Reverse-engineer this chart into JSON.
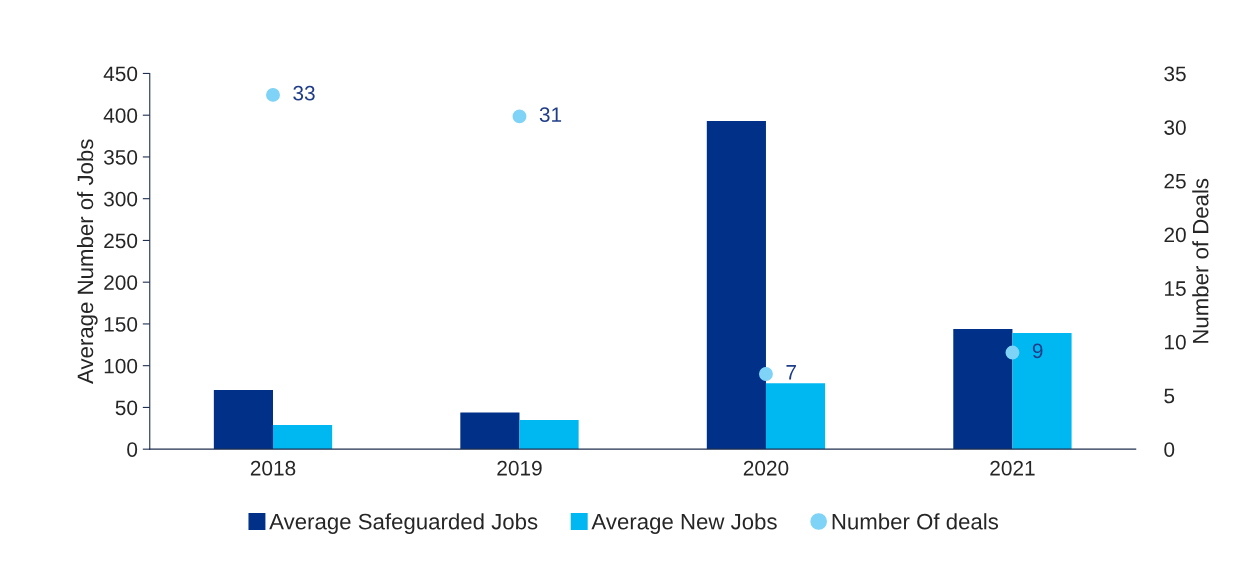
{
  "chart_data": {
    "type": "bar",
    "categories": [
      "2018",
      "2019",
      "2020",
      "2021"
    ],
    "ylabel": "Average Number of Jobs",
    "y2label": "Number of Deals",
    "ylim": [
      0,
      450
    ],
    "yticks": [
      0,
      50,
      100,
      150,
      200,
      250,
      300,
      350,
      400,
      450
    ],
    "y2lim": [
      0,
      35
    ],
    "y2ticks": [
      0,
      5,
      10,
      15,
      20,
      25,
      30,
      35
    ],
    "grid": false,
    "legend": "bottom",
    "series": [
      {
        "name": "Average Safeguarded Jobs",
        "color": "#003087",
        "values": [
          71,
          44,
          393,
          144
        ]
      },
      {
        "name": "Average New Jobs",
        "color": "#00b8f1",
        "values": [
          29,
          35,
          79,
          139
        ]
      },
      {
        "name": "Number Of deals",
        "type": "scatter",
        "axis": "y2",
        "color": "#7fd3f7",
        "marker": "circle",
        "data_labels": true,
        "values": [
          33,
          31,
          7,
          9
        ]
      }
    ]
  }
}
